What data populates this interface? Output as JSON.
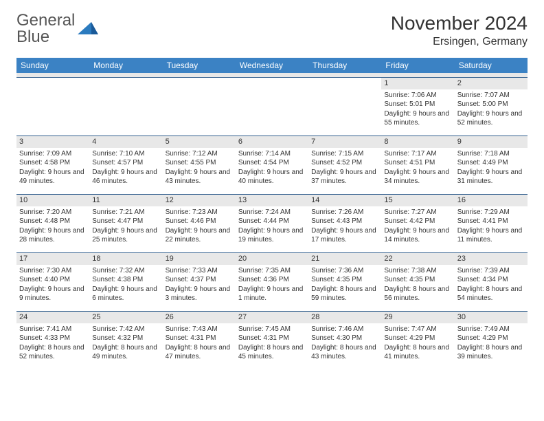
{
  "logo": {
    "text_gray": "General",
    "text_blue": "Blue"
  },
  "title": "November 2024",
  "location": "Ersingen, Germany",
  "colors": {
    "header_bg": "#3b82c4",
    "header_text": "#ffffff",
    "date_bg": "#e8e8e8",
    "border": "#2b5a8a",
    "text": "#333333"
  },
  "day_labels": [
    "Sunday",
    "Monday",
    "Tuesday",
    "Wednesday",
    "Thursday",
    "Friday",
    "Saturday"
  ],
  "weeks": [
    [
      {
        "date": "",
        "sunrise": "",
        "sunset": "",
        "daylight": ""
      },
      {
        "date": "",
        "sunrise": "",
        "sunset": "",
        "daylight": ""
      },
      {
        "date": "",
        "sunrise": "",
        "sunset": "",
        "daylight": ""
      },
      {
        "date": "",
        "sunrise": "",
        "sunset": "",
        "daylight": ""
      },
      {
        "date": "",
        "sunrise": "",
        "sunset": "",
        "daylight": ""
      },
      {
        "date": "1",
        "sunrise": "Sunrise: 7:06 AM",
        "sunset": "Sunset: 5:01 PM",
        "daylight": "Daylight: 9 hours and 55 minutes."
      },
      {
        "date": "2",
        "sunrise": "Sunrise: 7:07 AM",
        "sunset": "Sunset: 5:00 PM",
        "daylight": "Daylight: 9 hours and 52 minutes."
      }
    ],
    [
      {
        "date": "3",
        "sunrise": "Sunrise: 7:09 AM",
        "sunset": "Sunset: 4:58 PM",
        "daylight": "Daylight: 9 hours and 49 minutes."
      },
      {
        "date": "4",
        "sunrise": "Sunrise: 7:10 AM",
        "sunset": "Sunset: 4:57 PM",
        "daylight": "Daylight: 9 hours and 46 minutes."
      },
      {
        "date": "5",
        "sunrise": "Sunrise: 7:12 AM",
        "sunset": "Sunset: 4:55 PM",
        "daylight": "Daylight: 9 hours and 43 minutes."
      },
      {
        "date": "6",
        "sunrise": "Sunrise: 7:14 AM",
        "sunset": "Sunset: 4:54 PM",
        "daylight": "Daylight: 9 hours and 40 minutes."
      },
      {
        "date": "7",
        "sunrise": "Sunrise: 7:15 AM",
        "sunset": "Sunset: 4:52 PM",
        "daylight": "Daylight: 9 hours and 37 minutes."
      },
      {
        "date": "8",
        "sunrise": "Sunrise: 7:17 AM",
        "sunset": "Sunset: 4:51 PM",
        "daylight": "Daylight: 9 hours and 34 minutes."
      },
      {
        "date": "9",
        "sunrise": "Sunrise: 7:18 AM",
        "sunset": "Sunset: 4:49 PM",
        "daylight": "Daylight: 9 hours and 31 minutes."
      }
    ],
    [
      {
        "date": "10",
        "sunrise": "Sunrise: 7:20 AM",
        "sunset": "Sunset: 4:48 PM",
        "daylight": "Daylight: 9 hours and 28 minutes."
      },
      {
        "date": "11",
        "sunrise": "Sunrise: 7:21 AM",
        "sunset": "Sunset: 4:47 PM",
        "daylight": "Daylight: 9 hours and 25 minutes."
      },
      {
        "date": "12",
        "sunrise": "Sunrise: 7:23 AM",
        "sunset": "Sunset: 4:46 PM",
        "daylight": "Daylight: 9 hours and 22 minutes."
      },
      {
        "date": "13",
        "sunrise": "Sunrise: 7:24 AM",
        "sunset": "Sunset: 4:44 PM",
        "daylight": "Daylight: 9 hours and 19 minutes."
      },
      {
        "date": "14",
        "sunrise": "Sunrise: 7:26 AM",
        "sunset": "Sunset: 4:43 PM",
        "daylight": "Daylight: 9 hours and 17 minutes."
      },
      {
        "date": "15",
        "sunrise": "Sunrise: 7:27 AM",
        "sunset": "Sunset: 4:42 PM",
        "daylight": "Daylight: 9 hours and 14 minutes."
      },
      {
        "date": "16",
        "sunrise": "Sunrise: 7:29 AM",
        "sunset": "Sunset: 4:41 PM",
        "daylight": "Daylight: 9 hours and 11 minutes."
      }
    ],
    [
      {
        "date": "17",
        "sunrise": "Sunrise: 7:30 AM",
        "sunset": "Sunset: 4:40 PM",
        "daylight": "Daylight: 9 hours and 9 minutes."
      },
      {
        "date": "18",
        "sunrise": "Sunrise: 7:32 AM",
        "sunset": "Sunset: 4:38 PM",
        "daylight": "Daylight: 9 hours and 6 minutes."
      },
      {
        "date": "19",
        "sunrise": "Sunrise: 7:33 AM",
        "sunset": "Sunset: 4:37 PM",
        "daylight": "Daylight: 9 hours and 3 minutes."
      },
      {
        "date": "20",
        "sunrise": "Sunrise: 7:35 AM",
        "sunset": "Sunset: 4:36 PM",
        "daylight": "Daylight: 9 hours and 1 minute."
      },
      {
        "date": "21",
        "sunrise": "Sunrise: 7:36 AM",
        "sunset": "Sunset: 4:35 PM",
        "daylight": "Daylight: 8 hours and 59 minutes."
      },
      {
        "date": "22",
        "sunrise": "Sunrise: 7:38 AM",
        "sunset": "Sunset: 4:35 PM",
        "daylight": "Daylight: 8 hours and 56 minutes."
      },
      {
        "date": "23",
        "sunrise": "Sunrise: 7:39 AM",
        "sunset": "Sunset: 4:34 PM",
        "daylight": "Daylight: 8 hours and 54 minutes."
      }
    ],
    [
      {
        "date": "24",
        "sunrise": "Sunrise: 7:41 AM",
        "sunset": "Sunset: 4:33 PM",
        "daylight": "Daylight: 8 hours and 52 minutes."
      },
      {
        "date": "25",
        "sunrise": "Sunrise: 7:42 AM",
        "sunset": "Sunset: 4:32 PM",
        "daylight": "Daylight: 8 hours and 49 minutes."
      },
      {
        "date": "26",
        "sunrise": "Sunrise: 7:43 AM",
        "sunset": "Sunset: 4:31 PM",
        "daylight": "Daylight: 8 hours and 47 minutes."
      },
      {
        "date": "27",
        "sunrise": "Sunrise: 7:45 AM",
        "sunset": "Sunset: 4:31 PM",
        "daylight": "Daylight: 8 hours and 45 minutes."
      },
      {
        "date": "28",
        "sunrise": "Sunrise: 7:46 AM",
        "sunset": "Sunset: 4:30 PM",
        "daylight": "Daylight: 8 hours and 43 minutes."
      },
      {
        "date": "29",
        "sunrise": "Sunrise: 7:47 AM",
        "sunset": "Sunset: 4:29 PM",
        "daylight": "Daylight: 8 hours and 41 minutes."
      },
      {
        "date": "30",
        "sunrise": "Sunrise: 7:49 AM",
        "sunset": "Sunset: 4:29 PM",
        "daylight": "Daylight: 8 hours and 39 minutes."
      }
    ]
  ]
}
